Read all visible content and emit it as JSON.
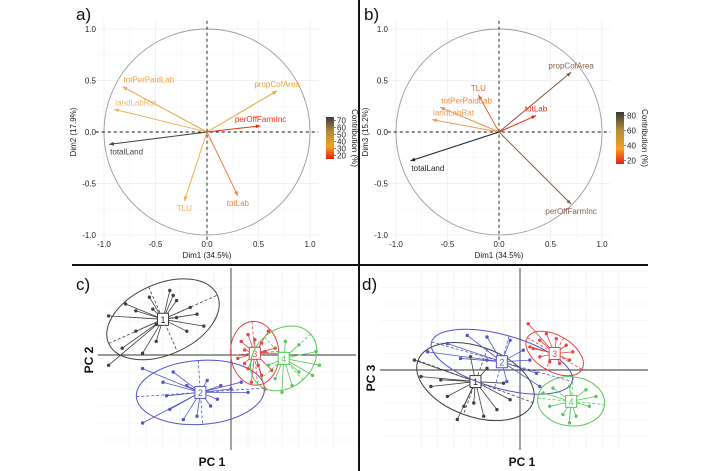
{
  "chart_data": [
    {
      "panel": "a)",
      "type": "scatter",
      "subtype": "pca-correlation-circle",
      "xlabel": "Dim1 (34.5%)",
      "ylabel": "Dim2 (17.9%)",
      "xlim": [
        -1.0,
        1.0
      ],
      "ylim": [
        -1.0,
        1.0
      ],
      "xticks": [
        "-1.0",
        "-0.5",
        "0.0",
        "0.5",
        "1.0"
      ],
      "yticks": [
        "1.0",
        "0.5",
        "0.0",
        "-0.5",
        "-1.0"
      ],
      "grid": true,
      "legend": {
        "title": "Contribution (%)",
        "ticks": [
          "70",
          "60",
          "50",
          "40",
          "30",
          "20"
        ],
        "min": 15,
        "max": 75,
        "placement": "right"
      },
      "variables": [
        {
          "name": "totPerPaidLab",
          "x": -0.82,
          "y": 0.44,
          "contribution": 42,
          "color": "#f0a040"
        },
        {
          "name": "landLabRat",
          "x": -0.9,
          "y": 0.22,
          "contribution": 30,
          "color": "#efb56a"
        },
        {
          "name": "propCofArea",
          "x": 0.68,
          "y": 0.4,
          "contribution": 22,
          "color": "#e3a832"
        },
        {
          "name": "perOffFarmInc",
          "x": 0.52,
          "y": 0.06,
          "contribution": 20,
          "color": "#e83010"
        },
        {
          "name": "totalLand",
          "x": -0.95,
          "y": -0.12,
          "contribution": 75,
          "color": "#404040"
        },
        {
          "name": "TLU",
          "x": -0.22,
          "y": -0.67,
          "contribution": 28,
          "color": "#f0aa50"
        },
        {
          "name": "totLab",
          "x": 0.3,
          "y": -0.62,
          "contribution": 45,
          "color": "#f08040"
        }
      ]
    },
    {
      "panel": "b)",
      "type": "scatter",
      "subtype": "pca-correlation-circle",
      "xlabel": "Dim1 (34.5%)",
      "ylabel": "Dim3 (15.2%)",
      "xlim": [
        -1.0,
        1.0
      ],
      "ylim": [
        -1.0,
        1.0
      ],
      "xticks": [
        "-1.0",
        "-0.5",
        "0.0",
        "0.5",
        "1.0"
      ],
      "yticks": [
        "1.0",
        "0.5",
        "0.0",
        "-0.5",
        "-1.0"
      ],
      "grid": true,
      "legend": {
        "title": "Contribution (%)",
        "ticks": [
          "80",
          "60",
          "40",
          "20"
        ],
        "min": 15,
        "max": 85,
        "placement": "right"
      },
      "variables": [
        {
          "name": "propCofArea",
          "x": 0.7,
          "y": 0.58,
          "contribution": 70,
          "color": "#8c5a48"
        },
        {
          "name": "TLU",
          "x": -0.2,
          "y": 0.36,
          "contribution": 22,
          "color": "#e86030"
        },
        {
          "name": "totPerPaidLab",
          "x": -0.57,
          "y": 0.24,
          "contribution": 25,
          "color": "#f08838"
        },
        {
          "name": "landLabRat",
          "x": -0.65,
          "y": 0.12,
          "contribution": 28,
          "color": "#ec9c58"
        },
        {
          "name": "totLab",
          "x": 0.36,
          "y": 0.16,
          "contribution": 20,
          "color": "#e52810"
        },
        {
          "name": "totalLand",
          "x": -0.86,
          "y": -0.28,
          "contribution": 85,
          "color": "#222222"
        },
        {
          "name": "perOffFarmInc",
          "x": 0.7,
          "y": -0.7,
          "contribution": 65,
          "color": "#8a5f50"
        }
      ]
    },
    {
      "panel": "c)",
      "type": "scatter",
      "subtype": "pca-individuals-clusters",
      "xlabel": "PC 1",
      "ylabel": "PC 2",
      "clusters": [
        {
          "id": "1",
          "color": "#404040",
          "centroid": [
            -2.0,
            1.05
          ],
          "points": [
            [
              -3.6,
              1.15
            ],
            [
              -3.1,
              1.5
            ],
            [
              -2.8,
              1.3
            ],
            [
              -2.4,
              1.7
            ],
            [
              -2.3,
              1.35
            ],
            [
              -1.7,
              1.75
            ],
            [
              -1.8,
              1.9
            ],
            [
              -1.6,
              1.6
            ],
            [
              -1.2,
              1.4
            ],
            [
              -1.0,
              1.2
            ],
            [
              -0.8,
              0.85
            ],
            [
              -1.3,
              0.7
            ],
            [
              -1.6,
              1.1
            ],
            [
              -2.2,
              0.9
            ],
            [
              -2.8,
              0.7
            ],
            [
              -3.6,
              -0.3
            ],
            [
              -3.2,
              0.2
            ],
            [
              -2.6,
              0.05
            ],
            [
              -2.2,
              0.4
            ]
          ]
        },
        {
          "id": "2",
          "color": "#5454c8",
          "centroid": [
            -0.9,
            -1.1
          ],
          "points": [
            [
              -2.6,
              -0.4
            ],
            [
              -2.0,
              -0.8
            ],
            [
              -1.7,
              -0.5
            ],
            [
              -1.3,
              -0.9
            ],
            [
              -0.7,
              -0.75
            ],
            [
              -0.3,
              -0.9
            ],
            [
              0.0,
              -1.0
            ],
            [
              0.3,
              -0.8
            ],
            [
              0.5,
              -1.1
            ],
            [
              -0.6,
              -1.5
            ],
            [
              -1.0,
              -1.8
            ],
            [
              -1.4,
              -1.9
            ],
            [
              -1.8,
              -1.6
            ],
            [
              -2.6,
              -2.0
            ],
            [
              -0.4,
              -1.3
            ],
            [
              -1.9,
              -1.2
            ]
          ]
        },
        {
          "id": "3",
          "color": "#e04848",
          "centroid": [
            0.7,
            0.05
          ],
          "points": [
            [
              0.3,
              0.4
            ],
            [
              0.5,
              0.6
            ],
            [
              0.7,
              0.45
            ],
            [
              0.9,
              0.35
            ],
            [
              1.1,
              0.7
            ],
            [
              0.6,
              0.2
            ],
            [
              0.4,
              0.15
            ],
            [
              1.0,
              0.1
            ],
            [
              1.3,
              0.2
            ],
            [
              0.8,
              -0.3
            ],
            [
              0.5,
              -0.4
            ],
            [
              0.9,
              -0.6
            ],
            [
              1.2,
              -0.45
            ],
            [
              0.2,
              -0.1
            ],
            [
              0.6,
              -0.8
            ],
            [
              1.0,
              -1.0
            ],
            [
              0.4,
              -0.25
            ],
            [
              1.5,
              0.05
            ]
          ]
        },
        {
          "id": "4",
          "color": "#58c858",
          "centroid": [
            1.55,
            -0.1
          ],
          "points": [
            [
              1.6,
              0.4
            ],
            [
              2.0,
              0.3
            ],
            [
              2.5,
              0.1
            ],
            [
              2.6,
              -0.3
            ],
            [
              2.4,
              -0.6
            ],
            [
              2.0,
              -0.5
            ],
            [
              1.8,
              -0.9
            ],
            [
              1.5,
              -1.1
            ],
            [
              1.3,
              -0.7
            ],
            [
              1.1,
              -0.3
            ]
          ]
        }
      ]
    },
    {
      "panel": "d)",
      "type": "scatter",
      "subtype": "pca-individuals-clusters",
      "xlabel": "PC 1",
      "ylabel": "PC 3",
      "clusters": [
        {
          "id": "1",
          "color": "#404040",
          "centroid": [
            -1.35,
            -0.35
          ],
          "points": [
            [
              -3.2,
              0.3
            ],
            [
              -3.0,
              -0.2
            ],
            [
              -2.7,
              -0.5
            ],
            [
              -2.2,
              -0.8
            ],
            [
              -1.9,
              -1.5
            ],
            [
              -1.7,
              -1.1
            ],
            [
              -1.4,
              -1.0
            ],
            [
              -1.1,
              -1.4
            ],
            [
              -0.7,
              -1.2
            ],
            [
              -0.3,
              -0.9
            ],
            [
              -0.5,
              -0.4
            ],
            [
              -1.0,
              0.05
            ],
            [
              -1.5,
              0.4
            ],
            [
              -2.4,
              -0.3
            ]
          ]
        },
        {
          "id": "2",
          "color": "#5454c8",
          "centroid": [
            -0.55,
            0.25
          ],
          "points": [
            [
              -2.8,
              0.55
            ],
            [
              -2.2,
              0.8
            ],
            [
              -1.6,
              1.05
            ],
            [
              -1.0,
              1.0
            ],
            [
              -0.3,
              0.9
            ],
            [
              0.1,
              0.6
            ],
            [
              0.3,
              0.3
            ],
            [
              0.5,
              -0.1
            ],
            [
              0.6,
              -0.5
            ],
            [
              -0.4,
              -0.35
            ],
            [
              -1.0,
              0.3
            ],
            [
              -1.8,
              0.35
            ]
          ]
        },
        {
          "id": "3",
          "color": "#e04848",
          "centroid": [
            1.05,
            0.5
          ],
          "points": [
            [
              0.4,
              0.65
            ],
            [
              0.6,
              0.9
            ],
            [
              0.8,
              1.1
            ],
            [
              1.1,
              0.95
            ],
            [
              1.4,
              0.75
            ],
            [
              1.6,
              0.55
            ],
            [
              1.5,
              0.3
            ],
            [
              1.2,
              0.2
            ],
            [
              0.9,
              0.25
            ],
            [
              0.6,
              0.4
            ],
            [
              0.3,
              0.7
            ],
            [
              0.25,
              1.4
            ],
            [
              1.0,
              0.6
            ]
          ]
        },
        {
          "id": "4",
          "color": "#58c858",
          "centroid": [
            1.55,
            -0.95
          ],
          "points": [
            [
              0.7,
              -0.7
            ],
            [
              1.0,
              -0.55
            ],
            [
              1.5,
              -0.5
            ],
            [
              2.0,
              -0.6
            ],
            [
              2.3,
              -0.8
            ],
            [
              2.1,
              -1.1
            ],
            [
              1.7,
              -1.4
            ],
            [
              1.5,
              -1.6
            ],
            [
              1.3,
              -1.35
            ],
            [
              0.9,
              -1.1
            ]
          ]
        }
      ]
    }
  ]
}
